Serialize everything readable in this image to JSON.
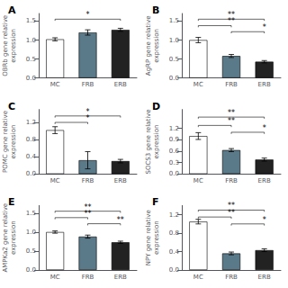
{
  "chart_data": [
    {
      "type": "bar",
      "title": "A",
      "ylabel": "OBRb gene relative\nexpression",
      "categories": [
        "MC",
        "FRB",
        "ERB"
      ],
      "values": [
        1.02,
        1.2,
        1.27
      ],
      "errors": [
        0.04,
        0.07,
        0.04
      ],
      "colors": [
        "white",
        "#5a7a8a",
        "#222222"
      ],
      "ylim": [
        0.0,
        1.7
      ],
      "yticks": [
        {
          "value": 0.0,
          "label": "0.0"
        },
        0.5,
        {
          "value": 1.0,
          "label": "1.0"
        },
        1.5
      ],
      "grid": false,
      "annotations": [
        {
          "x1": "MC",
          "x2": "ERB",
          "y": 1.55,
          "text": "*"
        }
      ]
    },
    {
      "type": "bar",
      "title": "B",
      "ylabel": "AgRP gene relative\nexpression",
      "categories": [
        "MC",
        "FRB",
        "ERB"
      ],
      "values": [
        1.0,
        0.58,
        0.43
      ],
      "errors": [
        0.07,
        0.04,
        0.03
      ],
      "colors": [
        "white",
        "#5a7a8a",
        "#222222"
      ],
      "ylim": [
        0.0,
        1.7
      ],
      "yticks": [
        {
          "value": 0.0,
          "label": "0.0"
        },
        0.5,
        {
          "value": 1.0,
          "label": "1.0"
        },
        1.5
      ],
      "grid": false,
      "annotations": [
        {
          "x1": "MC",
          "x2": "FRB",
          "y": 1.38,
          "text": "**"
        },
        {
          "x1": "MC",
          "x2": "ERB",
          "y": 1.55,
          "text": "**"
        },
        {
          "x1": "FRB",
          "x2": "ERB",
          "y": 1.22,
          "text": "*"
        }
      ]
    },
    {
      "type": "bar",
      "title": "C",
      "ylabel": "POMC gene relative\nexpression",
      "categories": [
        "MC",
        "FRB",
        "ERB"
      ],
      "values": [
        1.02,
        0.32,
        0.3
      ],
      "errors": [
        0.08,
        0.2,
        0.04
      ],
      "colors": [
        "white",
        "#5a7a8a",
        "#222222"
      ],
      "ylim": [
        0.0,
        1.5
      ],
      "yticks": [
        {
          "value": 0.0,
          "label": "0.0"
        },
        0.4,
        0.8,
        1.2
      ],
      "grid": false,
      "annotations": [
        {
          "x1": "MC",
          "x2": "FRB",
          "y": 1.2,
          "text": "*"
        },
        {
          "x1": "MC",
          "x2": "ERB",
          "y": 1.35,
          "text": "*"
        }
      ]
    },
    {
      "type": "bar",
      "title": "D",
      "ylabel": "SOCS3 gene relative\nexpression",
      "categories": [
        "MC",
        "FRB",
        "ERB"
      ],
      "values": [
        1.0,
        0.63,
        0.38
      ],
      "errors": [
        0.09,
        0.04,
        0.04
      ],
      "colors": [
        "white",
        "#5a7a8a",
        "#222222"
      ],
      "ylim": [
        0.0,
        1.7
      ],
      "yticks": [
        {
          "value": 0.0,
          "label": "0.0"
        },
        0.3,
        0.6,
        0.9,
        1.2
      ],
      "grid": false,
      "annotations": [
        {
          "x1": "MC",
          "x2": "FRB",
          "y": 1.28,
          "text": "**"
        },
        {
          "x1": "MC",
          "x2": "ERB",
          "y": 1.5,
          "text": "**"
        },
        {
          "x1": "FRB",
          "x2": "ERB",
          "y": 1.1,
          "text": "*"
        }
      ]
    },
    {
      "type": "bar",
      "title": "E",
      "ylabel": "AMPKa2 gene relative\nexpression",
      "categories": [
        "MC",
        "FRB",
        "ERB"
      ],
      "values": [
        1.0,
        0.88,
        0.73
      ],
      "errors": [
        0.03,
        0.04,
        0.03
      ],
      "colors": [
        "white",
        "#5a7a8a",
        "#222222"
      ],
      "ylim": [
        0.0,
        1.7
      ],
      "yticks": [
        {
          "value": 0.0,
          "label": "0.0"
        },
        0.5,
        {
          "value": 1.0,
          "label": "1.0"
        },
        1.5
      ],
      "grid": false,
      "annotations": [
        {
          "x1": "MC",
          "x2": "FRB",
          "y": 1.38,
          "text": "**"
        },
        {
          "x1": "MC",
          "x2": "ERB",
          "y": 1.55,
          "text": "**"
        },
        {
          "x1": "FRB",
          "x2": "ERB",
          "y": 1.22,
          "text": "**"
        }
      ]
    },
    {
      "type": "bar",
      "title": "F",
      "ylabel": "NPY gene relative\nexpression",
      "categories": [
        "MC",
        "FRB",
        "ERB"
      ],
      "values": [
        1.05,
        0.36,
        0.43
      ],
      "errors": [
        0.05,
        0.03,
        0.03
      ],
      "colors": [
        "white",
        "#5a7a8a",
        "#222222"
      ],
      "ylim": [
        0.0,
        1.4
      ],
      "yticks": [
        {
          "value": 0.0,
          "label": "0.0"
        },
        0.4,
        0.8,
        1.2
      ],
      "grid": false,
      "annotations": [
        {
          "x1": "MC",
          "x2": "FRB",
          "y": 1.15,
          "text": "**"
        },
        {
          "x1": "MC",
          "x2": "ERB",
          "y": 1.3,
          "text": "**"
        },
        {
          "x1": "FRB",
          "x2": "ERB",
          "y": 1.0,
          "text": "*"
        }
      ]
    }
  ]
}
